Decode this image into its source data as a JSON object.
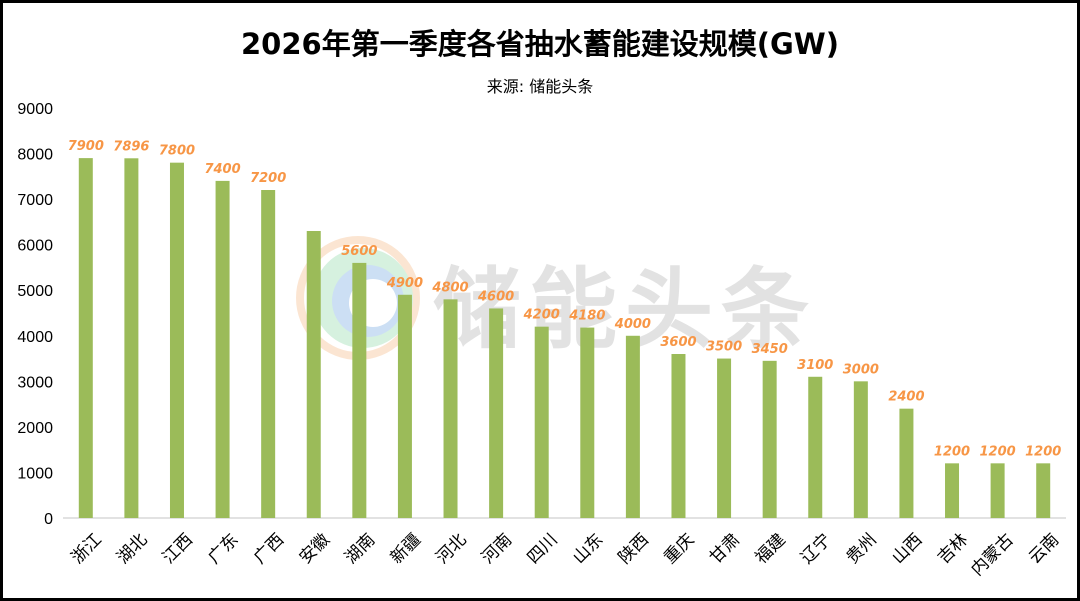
{
  "chart_data": {
    "type": "bar",
    "title": "2026年第一季度各省抽水蓄能建设规模(GW)",
    "subtitle": "来源: 储能头条",
    "categories": [
      "浙江",
      "湖北",
      "江西",
      "广东",
      "广西",
      "安徽",
      "湖南",
      "新疆",
      "河北",
      "河南",
      "四川",
      "山东",
      "陕西",
      "重庆",
      "甘肃",
      "福建",
      "辽宁",
      "贵州",
      "山西",
      "吉林",
      "内蒙古",
      "云南"
    ],
    "values": [
      7900,
      7896,
      7800,
      7400,
      7200,
      6300,
      5600,
      4900,
      4800,
      4600,
      4200,
      4180,
      4000,
      3600,
      3500,
      3450,
      3100,
      3000,
      2400,
      1200,
      1200,
      1200
    ],
    "data_labels": [
      "7900",
      "7896",
      "7800",
      "7400",
      "7200",
      null,
      "5600",
      "4900",
      "4800",
      "4600",
      "4200",
      "4180",
      "4000",
      "3600",
      "3500",
      "3450",
      "3100",
      "3000",
      "2400",
      "1200",
      "1200",
      "1200"
    ],
    "xlabel": "",
    "ylabel": "",
    "ylim": [
      0,
      9000
    ],
    "yticks": [
      "0",
      "1000",
      "2000",
      "3000",
      "4000",
      "5000",
      "6000",
      "7000",
      "8000",
      "9000"
    ],
    "grid": false,
    "legend": "none",
    "colors": {
      "bar": "#9bbb59",
      "data_label": "#f79646"
    },
    "watermark": "储能头条"
  }
}
